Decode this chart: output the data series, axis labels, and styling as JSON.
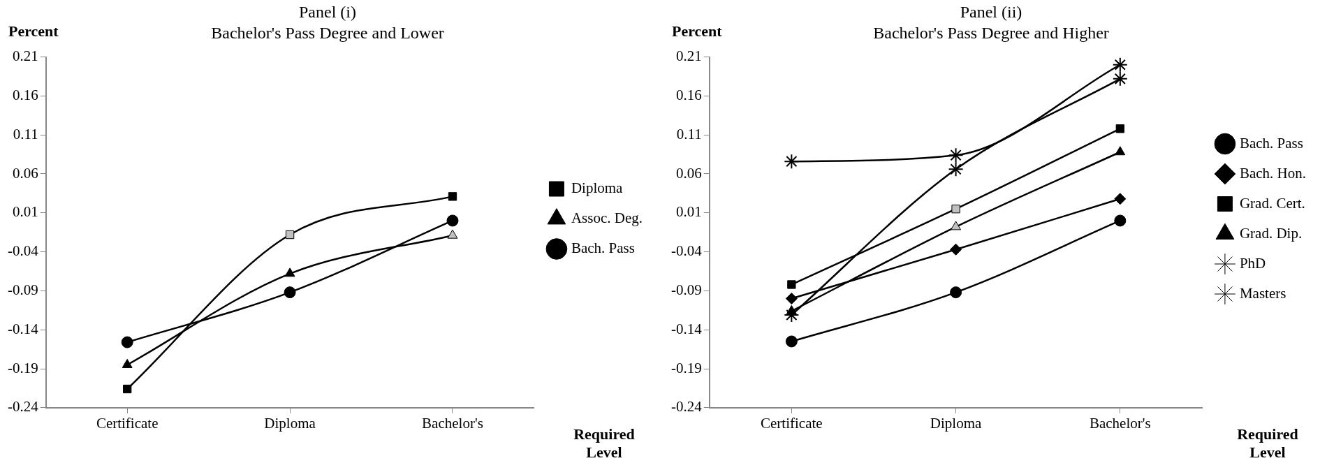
{
  "chart_data": [
    {
      "type": "line",
      "title": "Panel (i)",
      "subtitle": "Bachelor's Pass Degree and Lower",
      "ylabel": "Percent",
      "xlabel": "Required Level",
      "categories": [
        "Certificate",
        "Diploma",
        "Bachelor's"
      ],
      "ylim": [
        -0.24,
        0.21
      ],
      "yticks": [
        0.21,
        0.16,
        0.11,
        0.06,
        0.01,
        -0.04,
        -0.09,
        -0.14,
        -0.19,
        -0.24
      ],
      "grid": false,
      "legend": "right",
      "series": [
        {
          "name": "Diploma",
          "color": "#000000",
          "marker": "square",
          "colors": [
            "#000000",
            "#c0c0c0",
            "#000000"
          ],
          "values": [
            -0.216,
            -0.018,
            0.031
          ]
        },
        {
          "name": "Assoc. Deg.",
          "color": "#000000",
          "marker": "triangle",
          "colors": [
            "#000000",
            "#000000",
            "#c0c0c0"
          ],
          "values": [
            -0.185,
            -0.068,
            -0.019
          ]
        },
        {
          "name": "Bach. Pass",
          "color": "#000000",
          "marker": "circle",
          "colors": [
            "#000000",
            "#000000",
            "#000000"
          ],
          "values": [
            -0.156,
            -0.092,
            0.0
          ]
        }
      ]
    },
    {
      "type": "line",
      "title": "Panel (ii)",
      "subtitle": "Bachelor's Pass Degree and Higher",
      "ylabel": "Percent",
      "xlabel": "Required Level",
      "categories": [
        "Certificate",
        "Diploma",
        "Bachelor's"
      ],
      "ylim": [
        -0.24,
        0.21
      ],
      "yticks": [
        0.21,
        0.16,
        0.11,
        0.06,
        0.01,
        -0.04,
        -0.09,
        -0.14,
        -0.19,
        -0.24
      ],
      "grid": false,
      "legend": "right",
      "series": [
        {
          "name": "Bach. Pass",
          "color": "#000000",
          "marker": "circle",
          "colors": [
            "#000000",
            "#000000",
            "#000000"
          ],
          "values": [
            -0.155,
            -0.092,
            0.0
          ]
        },
        {
          "name": "Bach. Hon.",
          "color": "#000000",
          "marker": "diamond",
          "colors": [
            "#000000",
            "#000000",
            "#000000"
          ],
          "values": [
            -0.1,
            -0.037,
            0.028
          ]
        },
        {
          "name": "Grad. Cert.",
          "color": "#000000",
          "marker": "square",
          "colors": [
            "#000000",
            "#c0c0c0",
            "#000000"
          ],
          "values": [
            -0.082,
            0.015,
            0.118
          ]
        },
        {
          "name": "Grad. Dip.",
          "color": "#000000",
          "marker": "triangle",
          "colors": [
            "#000000",
            "#c0c0c0",
            "#000000"
          ],
          "values": [
            -0.116,
            -0.008,
            0.088
          ]
        },
        {
          "name": "PhD",
          "color": "#000000",
          "marker": "cross",
          "colors": [
            "#000000",
            "#000000",
            "#000000"
          ],
          "values": [
            0.076,
            0.084,
            0.2
          ]
        },
        {
          "name": "Masters",
          "color": "#000000",
          "marker": "cross",
          "colors": [
            "#000000",
            "#000000",
            "#000000"
          ],
          "values": [
            -0.121,
            0.066,
            0.182
          ]
        }
      ]
    }
  ]
}
